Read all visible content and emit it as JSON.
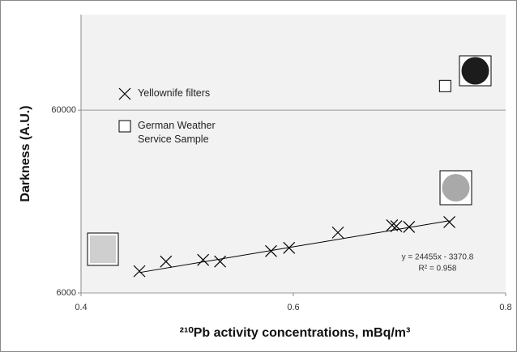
{
  "chart_data": {
    "type": "scatter",
    "x_label": "²¹⁰Pb activity concentrations, mBq/m³",
    "y_label": "Darkness (A.U.)",
    "xlim": [
      0.4,
      0.8
    ],
    "xticks": [
      0.4,
      0.6,
      0.8
    ],
    "ylim": [
      6000,
      200000
    ],
    "yticks": [
      6000,
      60000
    ],
    "y_log": true,
    "grid": true,
    "series": [
      {
        "name": "Yellownife filters",
        "marker": "x",
        "color": "#000000",
        "x": [
          0.455,
          0.48,
          0.515,
          0.531,
          0.579,
          0.596,
          0.642,
          0.693,
          0.697,
          0.709,
          0.747
        ],
        "values": [
          7890,
          8910,
          9100,
          8910,
          10160,
          10590,
          12840,
          14060,
          13900,
          13780,
          14650
        ]
      },
      {
        "name": "German Weather Service Sample",
        "marker": "square",
        "color": "#000000",
        "x": [
          0.743
        ],
        "values": [
          81300
        ]
      }
    ],
    "trendline": {
      "label": "y = 24455x - 3370.8",
      "r2_label": "R² = 0.958",
      "slope": 24455,
      "intercept": -3370.8
    }
  }
}
